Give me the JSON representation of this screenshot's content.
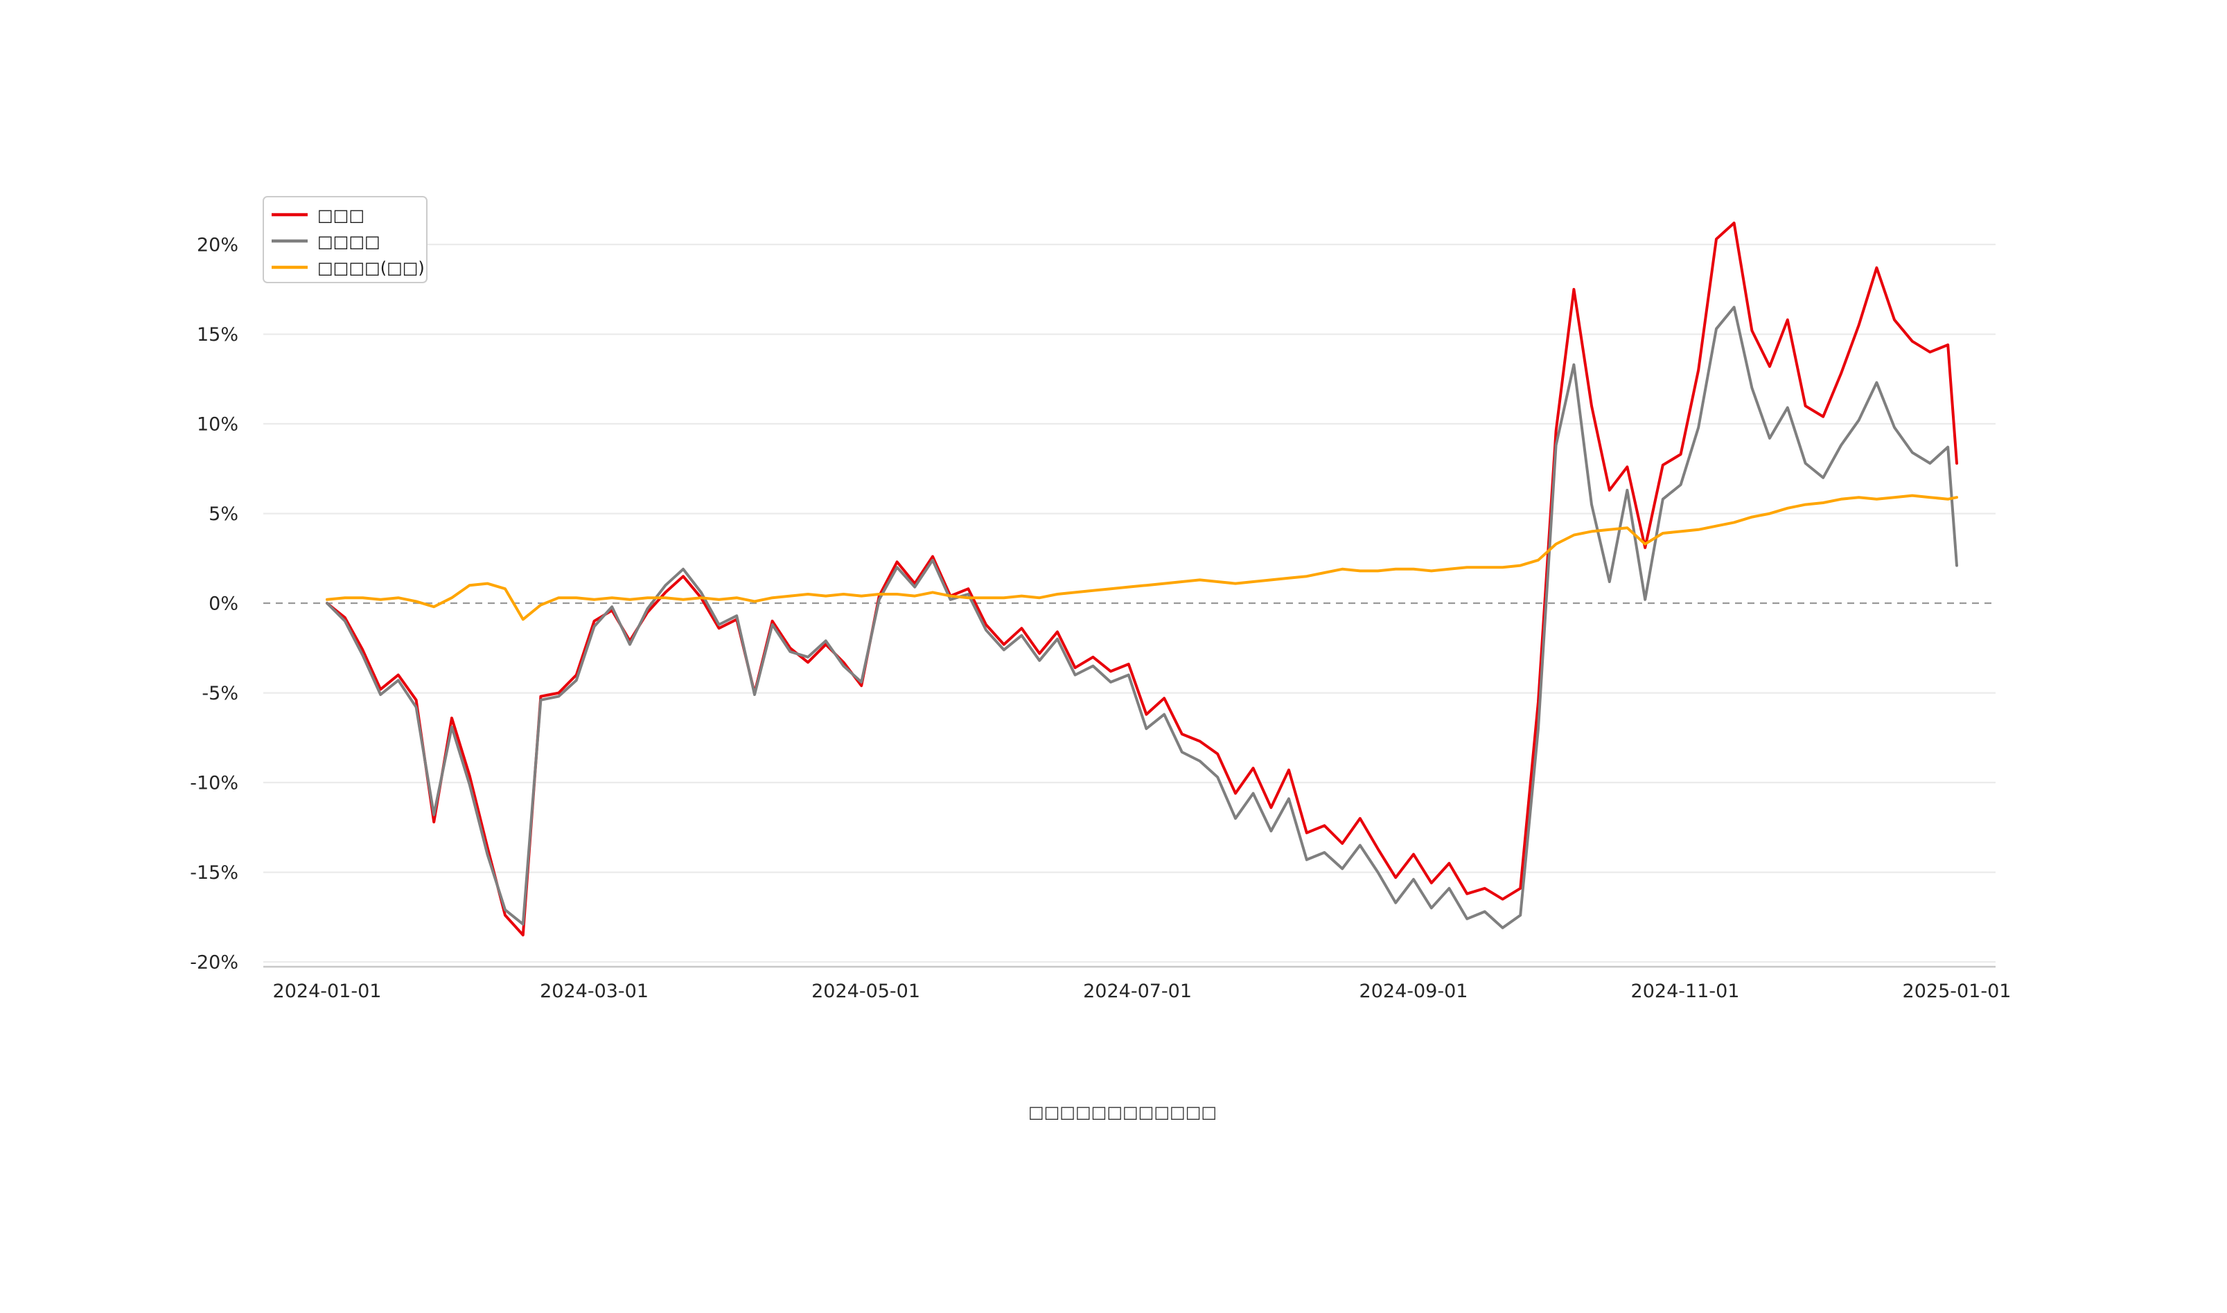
{
  "style": {
    "background": "#ffffff",
    "grid_color": "#ebebeb",
    "zero_line_color": "#999999",
    "spine_color": "#c8c8c8",
    "tick_text_color": "#262626"
  },
  "chart_data": {
    "type": "line",
    "title": "",
    "xlabel": "",
    "ylabel": "",
    "caption": "□□□□□□□□□□□□",
    "legend_position": "upper-left",
    "grid": "horizontal",
    "zero_line": "dashed",
    "x_start": "2024-01-01",
    "x_end": "2025-01-01",
    "ylim": [
      -20.4,
      22.4
    ],
    "yticks": [
      {
        "v": 20,
        "label": "20%"
      },
      {
        "v": 15,
        "label": "15%"
      },
      {
        "v": 10,
        "label": "10%"
      },
      {
        "v": 5,
        "label": "5%"
      },
      {
        "v": 0,
        "label": "0%"
      },
      {
        "v": -5,
        "label": "-5%"
      },
      {
        "v": -10,
        "label": "-10%"
      },
      {
        "v": -15,
        "label": "-15%"
      },
      {
        "v": -20,
        "label": "-20%"
      }
    ],
    "xticks": [
      {
        "date": "2024-01-01",
        "label": "2024-01-01"
      },
      {
        "date": "2024-03-01",
        "label": "2024-03-01"
      },
      {
        "date": "2024-05-01",
        "label": "2024-05-01"
      },
      {
        "date": "2024-07-01",
        "label": "2024-07-01"
      },
      {
        "date": "2024-09-01",
        "label": "2024-09-01"
      },
      {
        "date": "2024-11-01",
        "label": "2024-11-01"
      },
      {
        "date": "2025-01-01",
        "label": "2025-01-01"
      }
    ],
    "x_dates": [
      "2024-01-01",
      "2024-01-05",
      "2024-01-09",
      "2024-01-13",
      "2024-01-17",
      "2024-01-21",
      "2024-01-25",
      "2024-01-29",
      "2024-02-02",
      "2024-02-06",
      "2024-02-10",
      "2024-02-14",
      "2024-02-18",
      "2024-02-22",
      "2024-02-26",
      "2024-03-01",
      "2024-03-05",
      "2024-03-09",
      "2024-03-13",
      "2024-03-17",
      "2024-03-21",
      "2024-03-25",
      "2024-03-29",
      "2024-04-02",
      "2024-04-06",
      "2024-04-10",
      "2024-04-14",
      "2024-04-18",
      "2024-04-22",
      "2024-04-26",
      "2024-04-30",
      "2024-05-04",
      "2024-05-08",
      "2024-05-12",
      "2024-05-16",
      "2024-05-20",
      "2024-05-24",
      "2024-05-28",
      "2024-06-01",
      "2024-06-05",
      "2024-06-09",
      "2024-06-13",
      "2024-06-17",
      "2024-06-21",
      "2024-06-25",
      "2024-06-29",
      "2024-07-03",
      "2024-07-07",
      "2024-07-11",
      "2024-07-15",
      "2024-07-19",
      "2024-07-23",
      "2024-07-27",
      "2024-07-31",
      "2024-08-04",
      "2024-08-08",
      "2024-08-12",
      "2024-08-16",
      "2024-08-20",
      "2024-08-24",
      "2024-08-28",
      "2024-09-01",
      "2024-09-05",
      "2024-09-09",
      "2024-09-13",
      "2024-09-17",
      "2024-09-21",
      "2024-09-25",
      "2024-09-29",
      "2024-10-03",
      "2024-10-07",
      "2024-10-11",
      "2024-10-15",
      "2024-10-19",
      "2024-10-23",
      "2024-10-27",
      "2024-10-31",
      "2024-11-04",
      "2024-11-08",
      "2024-11-12",
      "2024-11-16",
      "2024-11-20",
      "2024-11-24",
      "2024-11-28",
      "2024-12-02",
      "2024-12-06",
      "2024-12-10",
      "2024-12-14",
      "2024-12-18",
      "2024-12-22",
      "2024-12-26",
      "2024-12-30",
      "2025-01-01"
    ],
    "series": [
      {
        "name": "□□□",
        "color": "#e8000b",
        "values": [
          0.0,
          -0.8,
          -2.6,
          -4.8,
          -4.0,
          -5.4,
          -12.2,
          -6.4,
          -9.6,
          -13.6,
          -17.4,
          -18.5,
          -5.2,
          -5.0,
          -4.0,
          -1.0,
          -0.4,
          -2.1,
          -0.5,
          0.6,
          1.5,
          0.3,
          -1.4,
          -0.9,
          -5.0,
          -1.0,
          -2.5,
          -3.3,
          -2.3,
          -3.3,
          -4.6,
          0.4,
          2.3,
          1.1,
          2.6,
          0.4,
          0.8,
          -1.2,
          -2.3,
          -1.4,
          -2.8,
          -1.6,
          -3.6,
          -3.0,
          -3.8,
          -3.4,
          -6.2,
          -5.3,
          -7.3,
          -7.7,
          -8.4,
          -10.6,
          -9.2,
          -11.4,
          -9.3,
          -12.8,
          -12.4,
          -13.4,
          -12.0,
          -13.7,
          -15.3,
          -14.0,
          -15.6,
          -14.5,
          -16.2,
          -15.9,
          -16.5,
          -15.9,
          -5.5,
          9.6,
          17.5,
          11.0,
          6.3,
          7.6,
          3.1,
          7.7,
          8.3,
          13.0,
          20.3,
          21.2,
          15.2,
          13.2,
          15.8,
          11.0,
          10.4,
          12.8,
          15.5,
          18.7,
          15.8,
          14.6,
          14.0,
          14.4,
          7.8
        ]
      },
      {
        "name": "□□□□",
        "color": "#7f7f7f",
        "values": [
          0.0,
          -1.0,
          -2.9,
          -5.1,
          -4.3,
          -5.8,
          -11.8,
          -6.9,
          -10.1,
          -14.0,
          -17.1,
          -17.9,
          -5.4,
          -5.2,
          -4.3,
          -1.3,
          -0.2,
          -2.3,
          -0.3,
          1.0,
          1.9,
          0.6,
          -1.2,
          -0.7,
          -5.1,
          -1.2,
          -2.7,
          -3.0,
          -2.1,
          -3.5,
          -4.4,
          0.2,
          2.0,
          0.9,
          2.4,
          0.2,
          0.5,
          -1.5,
          -2.6,
          -1.8,
          -3.2,
          -2.0,
          -4.0,
          -3.5,
          -4.4,
          -4.0,
          -7.0,
          -6.2,
          -8.3,
          -8.8,
          -9.7,
          -12.0,
          -10.6,
          -12.7,
          -10.9,
          -14.3,
          -13.9,
          -14.8,
          -13.5,
          -15.0,
          -16.7,
          -15.4,
          -17.0,
          -15.9,
          -17.6,
          -17.2,
          -18.1,
          -17.4,
          -7.0,
          8.8,
          13.3,
          5.5,
          1.2,
          6.3,
          0.2,
          5.8,
          6.6,
          9.8,
          15.3,
          16.5,
          12.0,
          9.2,
          10.9,
          7.8,
          7.0,
          8.8,
          10.2,
          12.3,
          9.8,
          8.4,
          7.8,
          8.7,
          2.1
        ]
      },
      {
        "name": "□□□□(□□)",
        "color": "#ffa500",
        "values": [
          0.2,
          0.3,
          0.3,
          0.2,
          0.3,
          0.1,
          -0.2,
          0.3,
          1.0,
          1.1,
          0.8,
          -0.9,
          -0.1,
          0.3,
          0.3,
          0.2,
          0.3,
          0.2,
          0.3,
          0.3,
          0.2,
          0.3,
          0.2,
          0.3,
          0.1,
          0.3,
          0.4,
          0.5,
          0.4,
          0.5,
          0.4,
          0.5,
          0.5,
          0.4,
          0.6,
          0.4,
          0.3,
          0.3,
          0.3,
          0.4,
          0.3,
          0.5,
          0.6,
          0.7,
          0.8,
          0.9,
          1.0,
          1.1,
          1.2,
          1.3,
          1.2,
          1.1,
          1.2,
          1.3,
          1.4,
          1.5,
          1.7,
          1.9,
          1.8,
          1.8,
          1.9,
          1.9,
          1.8,
          1.9,
          2.0,
          2.0,
          2.0,
          2.1,
          2.4,
          3.3,
          3.8,
          4.0,
          4.1,
          4.2,
          3.3,
          3.9,
          4.0,
          4.1,
          4.3,
          4.5,
          4.8,
          5.0,
          5.3,
          5.5,
          5.6,
          5.8,
          5.9,
          5.8,
          5.9,
          6.0,
          5.9,
          5.8,
          5.9
        ]
      }
    ]
  }
}
